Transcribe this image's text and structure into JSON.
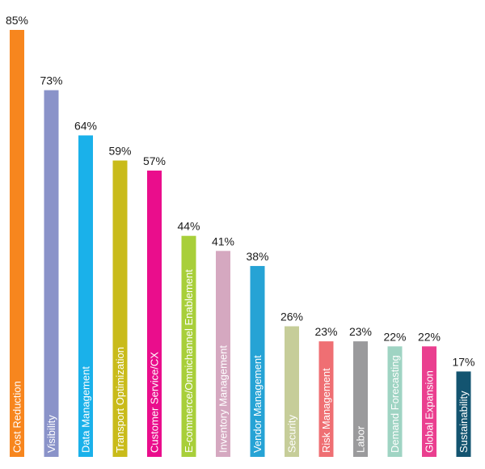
{
  "chart_data": {
    "type": "bar",
    "categories": [
      "Cost Reduction",
      "Visibility",
      "Data Management",
      "Transport Optimization",
      "Customer Service/CX",
      "E-commerce/Omnichannel Enablement",
      "Inventory Management",
      "Vendor Management",
      "Security",
      "Risk Management",
      "Labor",
      "Demand Forecasting",
      "Global Expansion",
      "Sustainability"
    ],
    "values": [
      85,
      73,
      64,
      59,
      57,
      44,
      41,
      38,
      26,
      23,
      23,
      22,
      22,
      17
    ],
    "value_labels": [
      "85%",
      "73%",
      "64%",
      "59%",
      "57%",
      "44%",
      "41%",
      "38%",
      "26%",
      "23%",
      "23%",
      "22%",
      "22%",
      "17%"
    ],
    "colors": [
      "#f7861e",
      "#8a93c9",
      "#1ab1ea",
      "#c9bb1a",
      "#ea0d8c",
      "#a8cf3a",
      "#d5a8c0",
      "#26a3d5",
      "#c6cd99",
      "#ef6f73",
      "#9a9a9c",
      "#9fd4c3",
      "#ea3f8f",
      "#135470"
    ],
    "label_colors": [
      "#ffffff",
      "#ffffff",
      "#ffffff",
      "#ffffff",
      "#ffffff",
      "#ffffff",
      "#ffffff",
      "#ffffff",
      "#ffffff",
      "#ffffff",
      "#ffffff",
      "#ffffff",
      "#ffffff",
      "#ffffff"
    ],
    "ylim": [
      0,
      85
    ],
    "grid": false,
    "orientation": "vertical",
    "category_labels": "inside-bars-rotated"
  }
}
